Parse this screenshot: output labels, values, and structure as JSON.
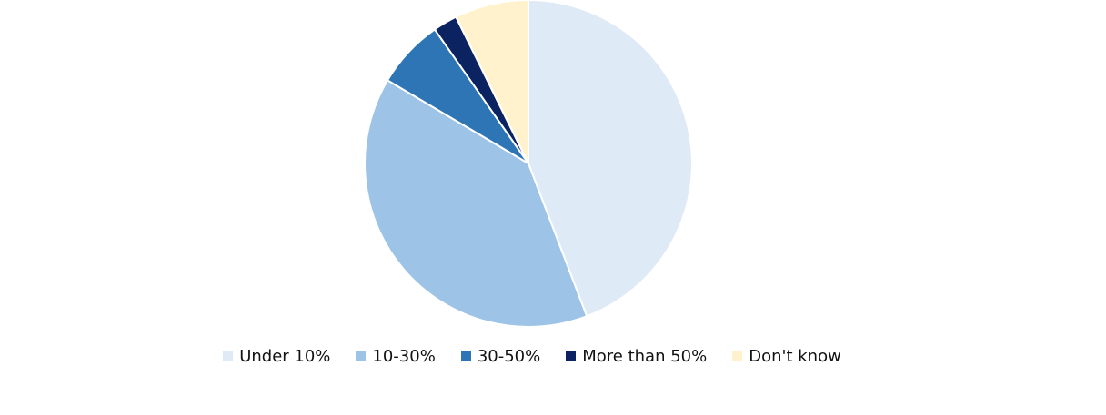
{
  "chart_data": {
    "type": "pie",
    "categories": [
      "Under 10%",
      "10-30%",
      "30-50%",
      "More than 50%",
      "Don't know"
    ],
    "values": [
      44.2,
      39.3,
      6.8,
      2.4,
      7.3
    ],
    "colors": [
      "#deeaf6",
      "#9dc3e6",
      "#2e75b6",
      "#0b2361",
      "#fff2cc"
    ],
    "legend": "bottom"
  }
}
